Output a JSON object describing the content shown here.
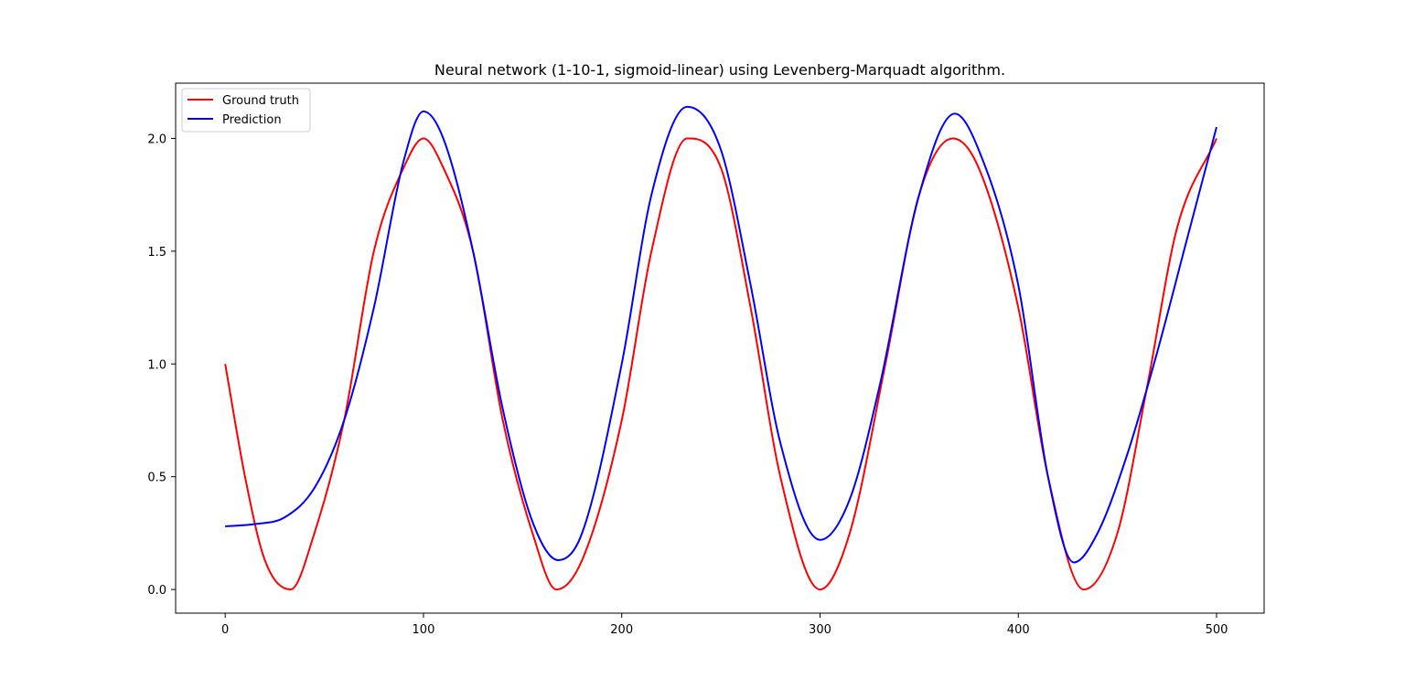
{
  "chart_data": {
    "type": "line",
    "title": "Neural network (1-10-1, sigmoid-linear) using Levenberg-Marquadt algorithm.",
    "xlabel": "",
    "ylabel": "",
    "xlim": [
      -25,
      524
    ],
    "ylim": [
      -0.105,
      2.245
    ],
    "xticks": [
      0,
      100,
      200,
      300,
      400,
      500
    ],
    "xtick_labels": [
      "0",
      "100",
      "200",
      "300",
      "400",
      "500"
    ],
    "yticks": [
      0.0,
      0.5,
      1.0,
      1.5,
      2.0
    ],
    "ytick_labels": [
      "0.0",
      "0.5",
      "1.0",
      "1.5",
      "2.0"
    ],
    "grid": false,
    "legend_position": "top-left",
    "series": [
      {
        "name": "Ground truth",
        "color": "#ff0000",
        "x": [
          0,
          10,
          20,
          33,
          45,
          60,
          75,
          90,
          100,
          110,
          125,
          140,
          155,
          167,
          180,
          200,
          215,
          233,
          250,
          265,
          280,
          300,
          315,
          333,
          350,
          367,
          380,
          400,
          415,
          433,
          450,
          465,
          480,
          500
        ],
        "y": [
          1.0,
          0.5,
          0.13,
          0.0,
          0.25,
          0.75,
          1.5,
          1.87,
          2.0,
          1.87,
          1.5,
          0.75,
          0.25,
          0.0,
          0.13,
          0.75,
          1.5,
          2.0,
          1.87,
          1.25,
          0.5,
          0.0,
          0.25,
          1.0,
          1.75,
          2.0,
          1.87,
          1.25,
          0.5,
          0.0,
          0.25,
          0.9,
          1.6,
          2.0
        ]
      },
      {
        "name": "Prediction",
        "color": "#0000ff",
        "x": [
          0,
          15,
          30,
          45,
          60,
          75,
          90,
          100,
          110,
          125,
          140,
          155,
          168,
          180,
          200,
          215,
          233,
          250,
          265,
          280,
          300,
          315,
          330,
          350,
          368,
          380,
          400,
          415,
          428,
          440,
          455,
          470,
          485,
          500
        ],
        "y": [
          0.28,
          0.29,
          0.32,
          0.45,
          0.75,
          1.25,
          1.9,
          2.12,
          2.0,
          1.5,
          0.8,
          0.3,
          0.13,
          0.25,
          1.0,
          1.75,
          2.14,
          1.95,
          1.35,
          0.65,
          0.22,
          0.4,
          0.9,
          1.75,
          2.11,
          1.95,
          1.35,
          0.5,
          0.12,
          0.25,
          0.6,
          1.05,
          1.55,
          2.05
        ]
      }
    ]
  }
}
